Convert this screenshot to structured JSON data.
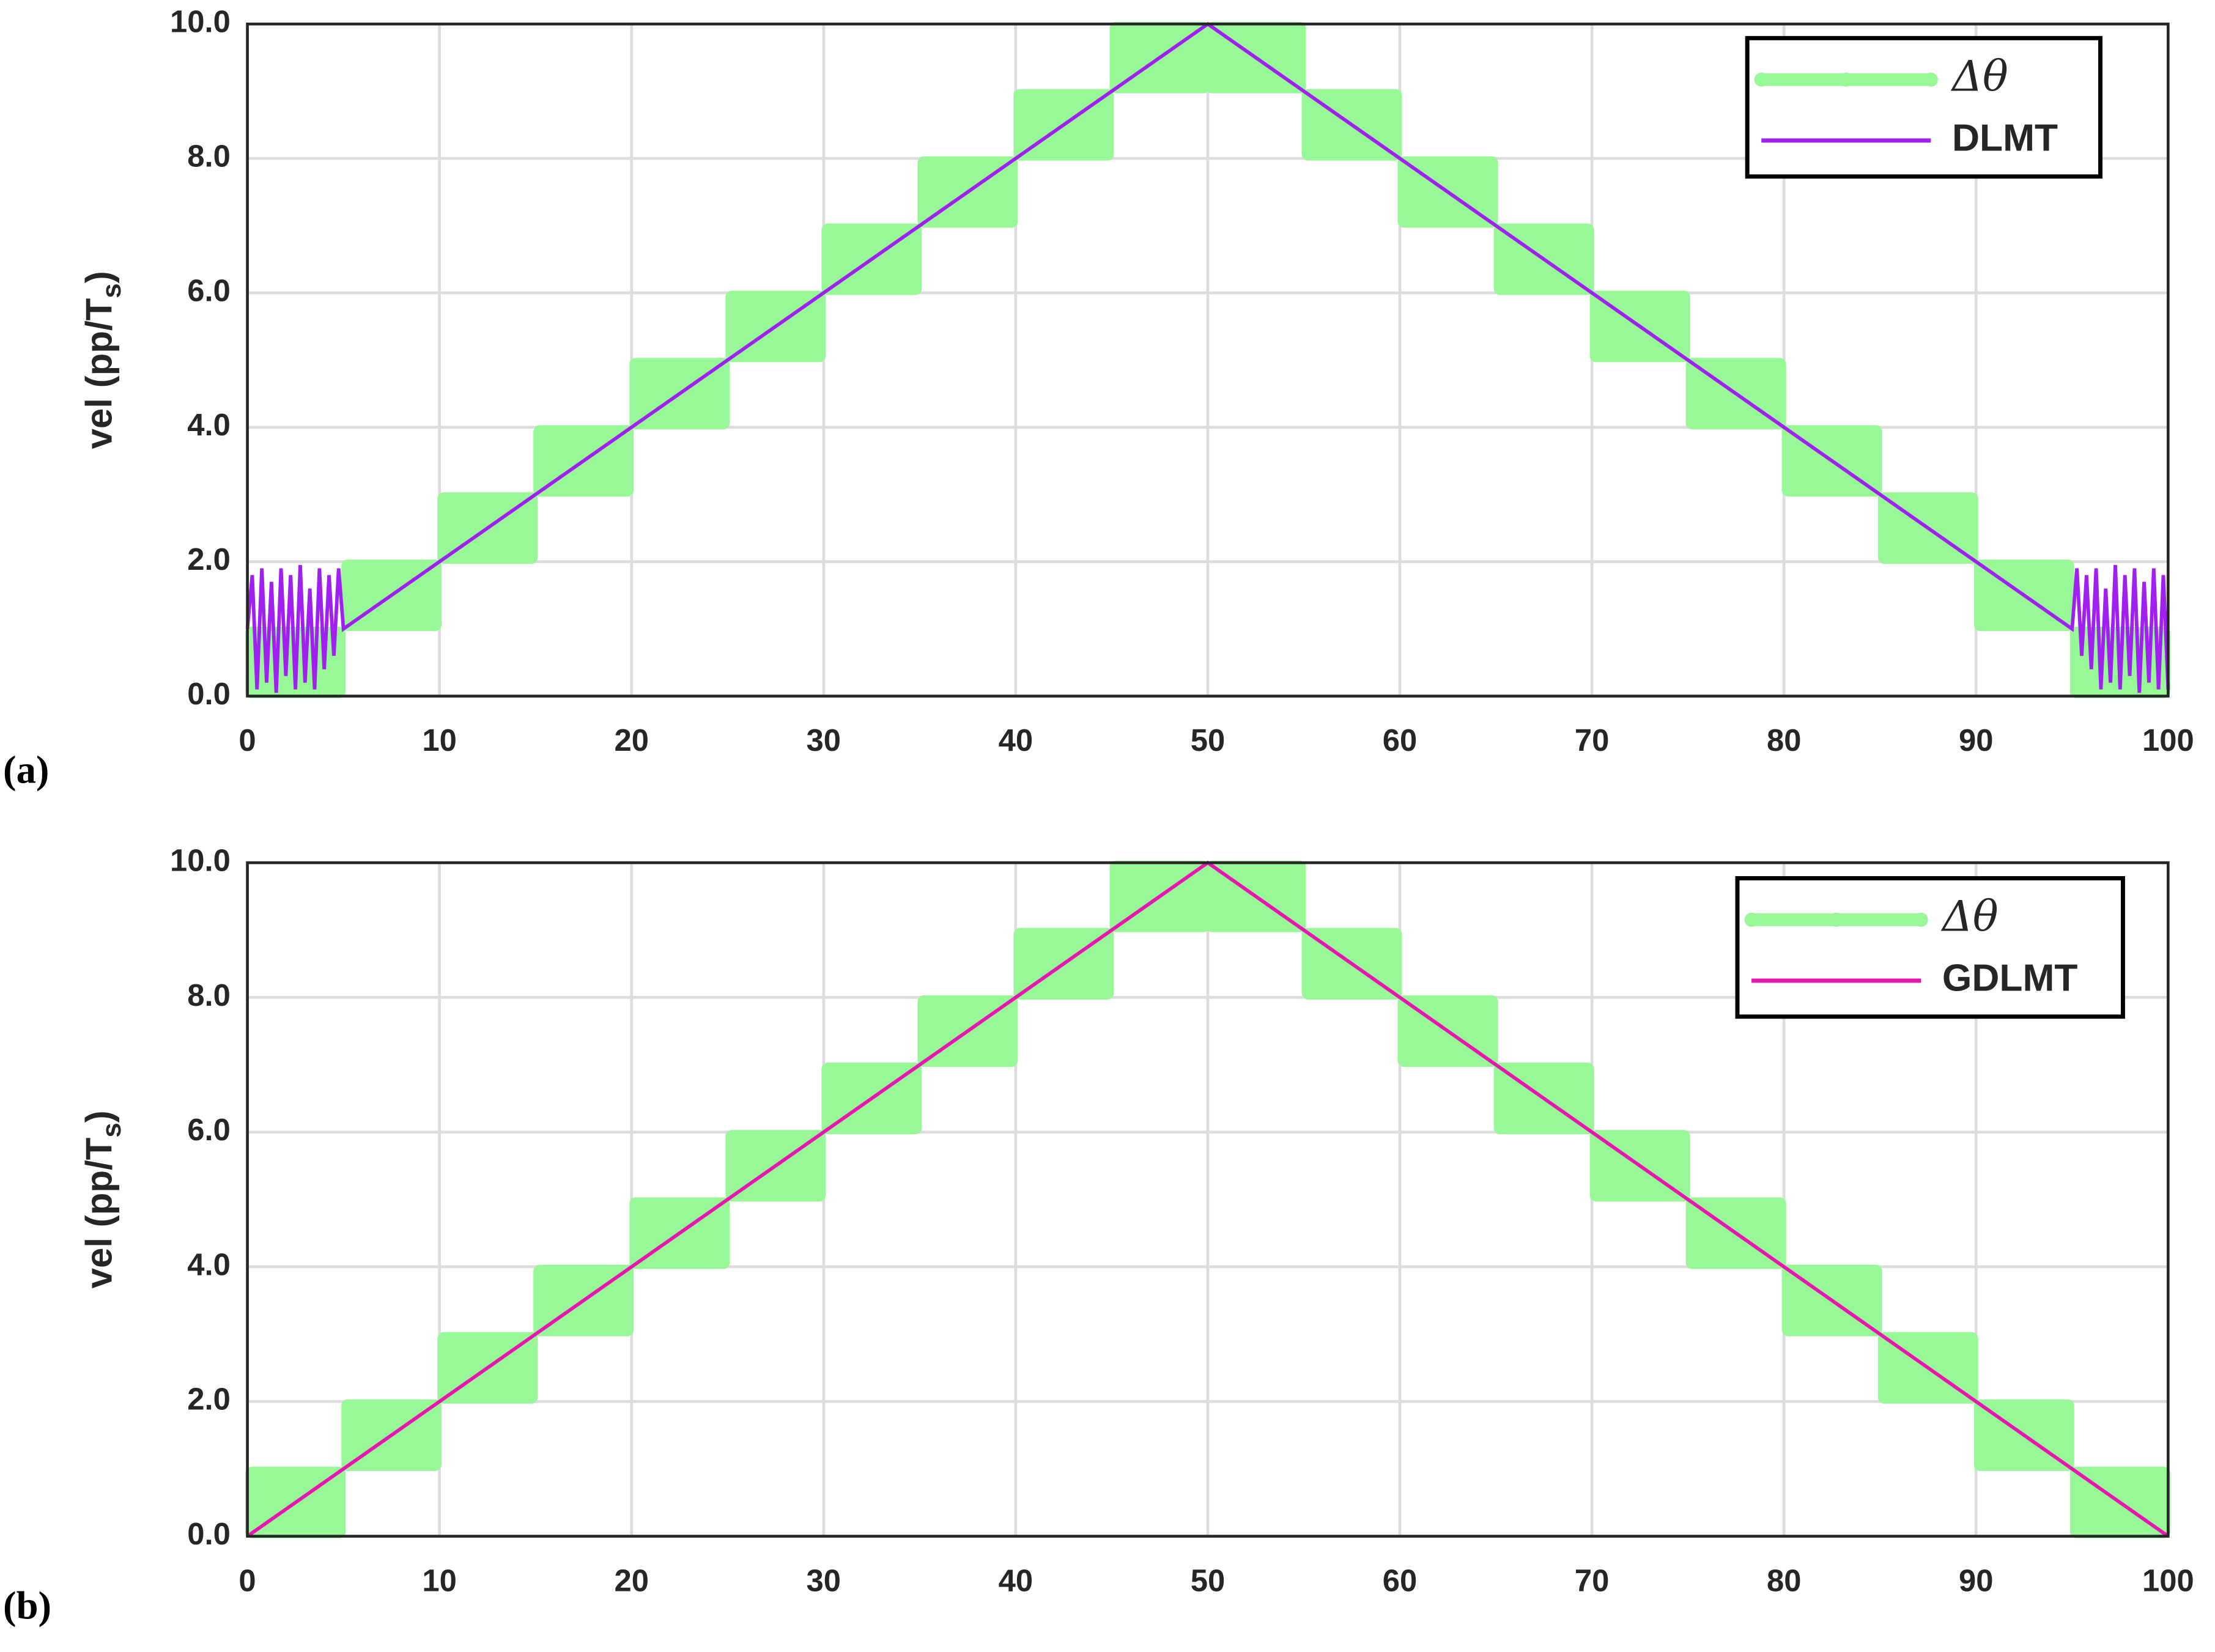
{
  "chart_data": [
    {
      "type": "line",
      "panel_label": "(a)",
      "ylabel": {
        "main": "vel (pp/T",
        "sub": "s",
        "end": ")"
      },
      "xlim": [
        0,
        100
      ],
      "xticks": [
        0,
        10,
        20,
        30,
        40,
        50,
        60,
        70,
        80,
        90,
        100
      ],
      "ylim": [
        0,
        10
      ],
      "yticks": [
        {
          "value": 0,
          "label": "0.0"
        },
        {
          "value": 2,
          "label": "2.0"
        },
        {
          "value": 4,
          "label": "4.0"
        },
        {
          "value": 6,
          "label": "6.0"
        },
        {
          "value": 8,
          "label": "8.0"
        },
        {
          "value": 10,
          "label": "10.0"
        }
      ],
      "grid": true,
      "legend": "upper right",
      "band": {
        "name": "Δθ",
        "color": "#98f898",
        "bins": [
          0,
          5,
          10,
          15,
          20,
          25,
          30,
          35,
          40,
          45,
          50,
          55,
          60,
          65,
          70,
          75,
          80,
          85,
          90,
          95,
          100
        ],
        "low": [
          0,
          1,
          2,
          3,
          4,
          5,
          6,
          7,
          8,
          9,
          9,
          8,
          7,
          6,
          5,
          4,
          3,
          2,
          1,
          0
        ],
        "high": [
          1,
          2,
          3,
          4,
          5,
          6,
          7,
          8,
          9,
          10,
          10,
          9,
          8,
          7,
          6,
          5,
          4,
          3,
          2,
          1
        ]
      },
      "series": [
        {
          "name": "DLMT",
          "color": "#a020f0",
          "x": [
            0,
            0.25,
            0.5,
            0.75,
            1,
            1.25,
            1.5,
            1.75,
            2,
            2.25,
            2.5,
            2.75,
            3,
            3.25,
            3.5,
            3.75,
            4,
            4.25,
            4.5,
            4.75,
            5,
            50,
            95,
            95.25,
            95.5,
            95.75,
            96,
            96.25,
            96.5,
            96.75,
            97,
            97.25,
            97.5,
            97.75,
            98,
            98.25,
            98.5,
            98.75,
            99,
            99.25,
            99.5,
            99.75,
            100
          ],
          "values": [
            1,
            1.8,
            0.1,
            1.9,
            0.2,
            1.7,
            0.05,
            1.9,
            0.3,
            1.8,
            0.1,
            1.95,
            0.2,
            1.6,
            0.1,
            1.9,
            0.4,
            1.8,
            0.6,
            1.9,
            1,
            10,
            1,
            1.9,
            0.6,
            1.8,
            0.4,
            1.9,
            0.1,
            1.6,
            0.2,
            1.95,
            0.1,
            1.8,
            0.3,
            1.9,
            0.05,
            1.7,
            0.2,
            1.9,
            0.1,
            1.8,
            0.1
          ]
        }
      ]
    },
    {
      "type": "line",
      "panel_label": "(b)",
      "ylabel": {
        "main": "vel (pp/T",
        "sub": "s",
        "end": ")"
      },
      "xlim": [
        0,
        100
      ],
      "xticks": [
        0,
        10,
        20,
        30,
        40,
        50,
        60,
        70,
        80,
        90,
        100
      ],
      "ylim": [
        0,
        10
      ],
      "yticks": [
        {
          "value": 0,
          "label": "0.0"
        },
        {
          "value": 2,
          "label": "2.0"
        },
        {
          "value": 4,
          "label": "4.0"
        },
        {
          "value": 6,
          "label": "6.0"
        },
        {
          "value": 8,
          "label": "8.0"
        },
        {
          "value": 10,
          "label": "10.0"
        }
      ],
      "grid": true,
      "legend": "upper right",
      "band": {
        "name": "Δθ",
        "color": "#98f898",
        "bins": [
          0,
          5,
          10,
          15,
          20,
          25,
          30,
          35,
          40,
          45,
          50,
          55,
          60,
          65,
          70,
          75,
          80,
          85,
          90,
          95,
          100
        ],
        "low": [
          0,
          1,
          2,
          3,
          4,
          5,
          6,
          7,
          8,
          9,
          9,
          8,
          7,
          6,
          5,
          4,
          3,
          2,
          1,
          0
        ],
        "high": [
          1,
          2,
          3,
          4,
          5,
          6,
          7,
          8,
          9,
          10,
          10,
          9,
          8,
          7,
          6,
          5,
          4,
          3,
          2,
          1
        ]
      },
      "series": [
        {
          "name": "GDLMT",
          "color": "#e815b0",
          "x": [
            0,
            50,
            100
          ],
          "values": [
            0,
            10,
            0
          ]
        }
      ]
    }
  ]
}
